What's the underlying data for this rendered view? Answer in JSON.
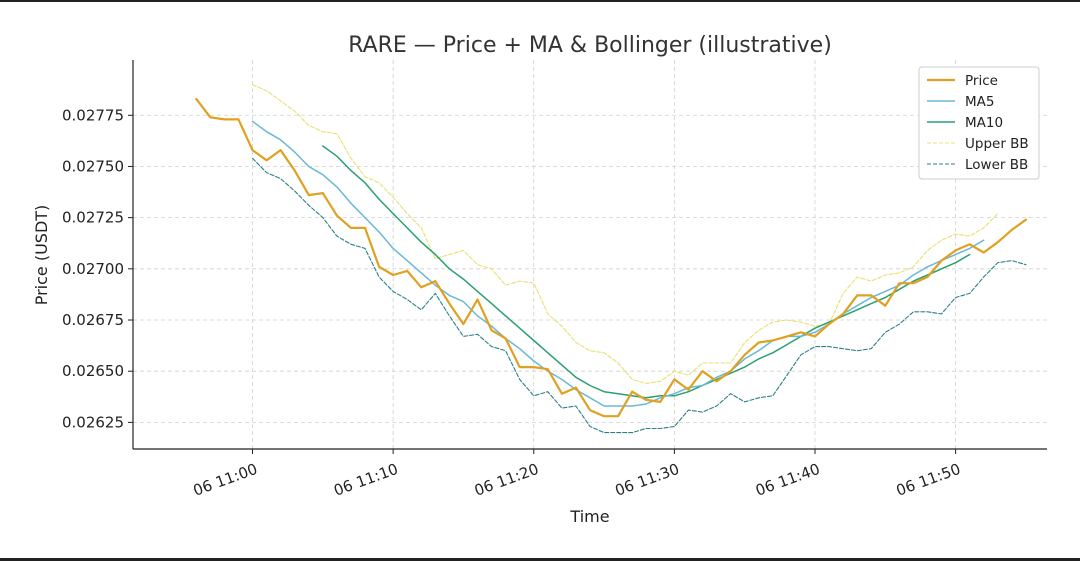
{
  "chart_data": {
    "type": "line",
    "title": "RARE — Price + MA & Bollinger (illustrative)",
    "xlabel": "Time",
    "ylabel": "Price (USDT)",
    "ylim": [
      0.02612,
      0.02802
    ],
    "xlim_minutes": [
      -8.5,
      56.5
    ],
    "grid": true,
    "legend_position": "top-right",
    "y_ticks": [
      {
        "value": 0.02625,
        "label": "0.02625"
      },
      {
        "value": 0.0265,
        "label": "0.02650"
      },
      {
        "value": 0.02675,
        "label": "0.02675"
      },
      {
        "value": 0.027,
        "label": "0.02700"
      },
      {
        "value": 0.02725,
        "label": "0.02725"
      },
      {
        "value": 0.0275,
        "label": "0.02750"
      },
      {
        "value": 0.02775,
        "label": "0.02775"
      }
    ],
    "x_ticks": [
      {
        "minute": 0,
        "label": "06 11:00"
      },
      {
        "minute": 10,
        "label": "06 11:10"
      },
      {
        "minute": 20,
        "label": "06 11:20"
      },
      {
        "minute": 30,
        "label": "06 11:30"
      },
      {
        "minute": 40,
        "label": "06 11:40"
      },
      {
        "minute": 50,
        "label": "06 11:50"
      }
    ],
    "x_start_minute": -4,
    "series": [
      {
        "name": "Price",
        "color": "#e0a020",
        "width": 2.2,
        "dash": "",
        "start_index": 0,
        "values": [
          0.02783,
          0.02774,
          0.02773,
          0.02773,
          0.02758,
          0.02753,
          0.02758,
          0.02748,
          0.02736,
          0.02737,
          0.02726,
          0.0272,
          0.0272,
          0.02701,
          0.02697,
          0.02699,
          0.02691,
          0.02694,
          0.02683,
          0.02673,
          0.02685,
          0.0267,
          0.02666,
          0.02652,
          0.02652,
          0.02651,
          0.02639,
          0.02642,
          0.02631,
          0.02628,
          0.02628,
          0.0264,
          0.02636,
          0.02635,
          0.02646,
          0.02641,
          0.0265,
          0.02645,
          0.0265,
          0.02658,
          0.02664,
          0.02665,
          0.02667,
          0.02669,
          0.02667,
          0.02673,
          0.02678,
          0.02687,
          0.02687,
          0.02682,
          0.02693,
          0.02693,
          0.02696,
          0.02704,
          0.02709,
          0.02712,
          0.02708,
          0.02713,
          0.02719,
          0.02724
        ]
      },
      {
        "name": "MA5",
        "color": "#6ab8d6",
        "width": 1.5,
        "dash": "",
        "start_index": 4,
        "values": [
          0.02772,
          0.02767,
          0.02763,
          0.02757,
          0.0275,
          0.02746,
          0.0274,
          0.02732,
          0.02725,
          0.02718,
          0.0271,
          0.02704,
          0.02698,
          0.02692,
          0.02687,
          0.02684,
          0.02677,
          0.02672,
          0.02666,
          0.02661,
          0.02655,
          0.0265,
          0.02646,
          0.02641,
          0.02637,
          0.02633,
          0.02633,
          0.02633,
          0.02634,
          0.02637,
          0.02639,
          0.02642,
          0.02643,
          0.02647,
          0.0265,
          0.02656,
          0.0266,
          0.02665,
          0.02667,
          0.02667,
          0.02669,
          0.02673,
          0.02678,
          0.02682,
          0.02686,
          0.02689,
          0.02692,
          0.02697,
          0.02701,
          0.02704,
          0.02707,
          0.0271,
          0.02714
        ]
      },
      {
        "name": "MA10",
        "color": "#2aa070",
        "width": 1.5,
        "dash": "",
        "start_index": 9,
        "values": [
          0.0276,
          0.02755,
          0.02748,
          0.02742,
          0.02734,
          0.02727,
          0.0272,
          0.02713,
          0.02707,
          0.027,
          0.02695,
          0.02689,
          0.02683,
          0.02677,
          0.02671,
          0.02665,
          0.02659,
          0.02653,
          0.02647,
          0.02643,
          0.0264,
          0.02639,
          0.02638,
          0.02637,
          0.02638,
          0.02638,
          0.0264,
          0.02643,
          0.02646,
          0.02649,
          0.02652,
          0.02656,
          0.02659,
          0.02663,
          0.02667,
          0.02671,
          0.02674,
          0.02677,
          0.0268,
          0.02683,
          0.02686,
          0.0269,
          0.02694,
          0.02697,
          0.027,
          0.02703,
          0.02707
        ]
      },
      {
        "name": "Upper BB",
        "color": "#e8e070",
        "width": 1.1,
        "dash": "4 2",
        "start_index": 4,
        "values": [
          0.0279,
          0.02787,
          0.02782,
          0.02777,
          0.0277,
          0.02767,
          0.02766,
          0.02754,
          0.02745,
          0.02742,
          0.02735,
          0.02727,
          0.0272,
          0.02705,
          0.02707,
          0.02709,
          0.02702,
          0.027,
          0.02692,
          0.02694,
          0.02693,
          0.02678,
          0.02672,
          0.02664,
          0.0266,
          0.02659,
          0.02654,
          0.02646,
          0.02644,
          0.02645,
          0.0265,
          0.02648,
          0.02654,
          0.02654,
          0.02654,
          0.02664,
          0.0267,
          0.02674,
          0.02675,
          0.02674,
          0.02672,
          0.02673,
          0.02688,
          0.02696,
          0.02694,
          0.02697,
          0.02698,
          0.02701,
          0.02709,
          0.02714,
          0.02717,
          0.02716,
          0.0272,
          0.02727
        ]
      },
      {
        "name": "Lower BB",
        "color": "#2a8088",
        "width": 1.1,
        "dash": "4 2",
        "start_index": 4,
        "values": [
          0.02754,
          0.02747,
          0.02744,
          0.02738,
          0.02731,
          0.02725,
          0.02716,
          0.02712,
          0.0271,
          0.02696,
          0.02689,
          0.02685,
          0.0268,
          0.02688,
          0.02677,
          0.02667,
          0.02668,
          0.02662,
          0.0266,
          0.02646,
          0.02638,
          0.0264,
          0.02632,
          0.02633,
          0.02623,
          0.0262,
          0.0262,
          0.0262,
          0.02622,
          0.02622,
          0.02623,
          0.02631,
          0.0263,
          0.02633,
          0.02639,
          0.02635,
          0.02637,
          0.02638,
          0.02648,
          0.02658,
          0.02662,
          0.02662,
          0.02661,
          0.0266,
          0.02661,
          0.02669,
          0.02673,
          0.02679,
          0.02679,
          0.02678,
          0.02686,
          0.02688,
          0.02696,
          0.02703,
          0.02704,
          0.02702
        ]
      }
    ]
  }
}
